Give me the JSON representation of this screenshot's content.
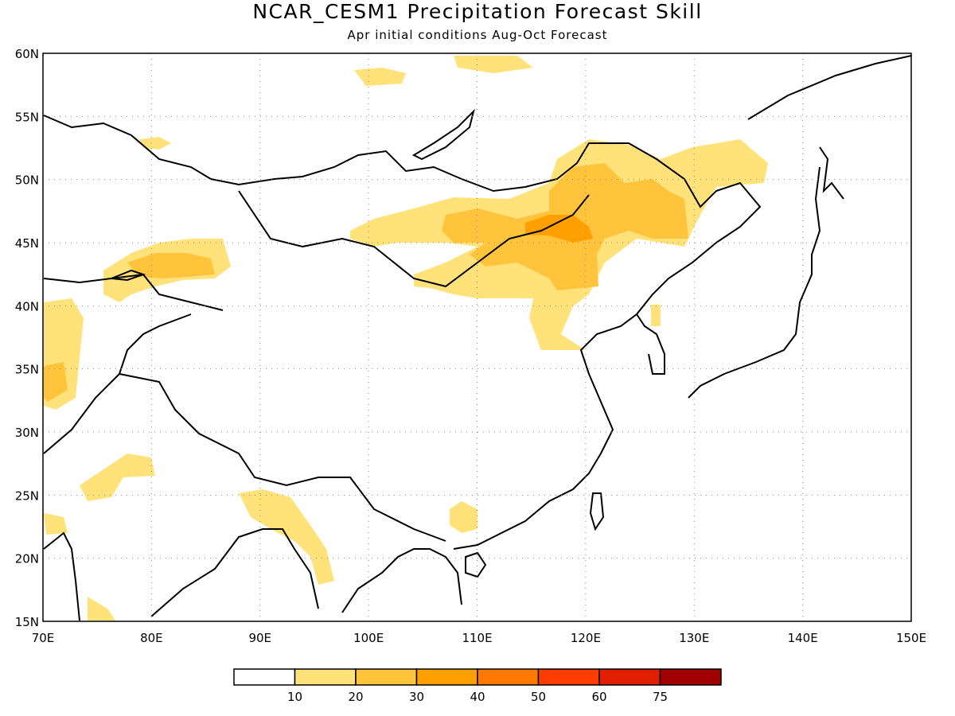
{
  "title": "NCAR_CESM1 Precipitation Forecast Skill",
  "subtitle": "Apr initial conditions  Aug-Oct Forecast",
  "map": {
    "lon_range": [
      70,
      150
    ],
    "lat_range": [
      15,
      60
    ],
    "lon_ticks": [
      "70E",
      "80E",
      "90E",
      "100E",
      "110E",
      "120E",
      "130E",
      "140E",
      "150E"
    ],
    "lat_ticks": [
      "15N",
      "20N",
      "25N",
      "30N",
      "35N",
      "40N",
      "45N",
      "50N",
      "55N",
      "60N"
    ],
    "grid": "dotted"
  },
  "legend": {
    "colors": [
      "#ffffff",
      "#ffe27a",
      "#ffc33c",
      "#ffa000",
      "#ff7800",
      "#ff3c00",
      "#e01e00",
      "#a00000"
    ],
    "labels": [
      "10",
      "20",
      "30",
      "40",
      "50",
      "60",
      "75"
    ]
  }
}
